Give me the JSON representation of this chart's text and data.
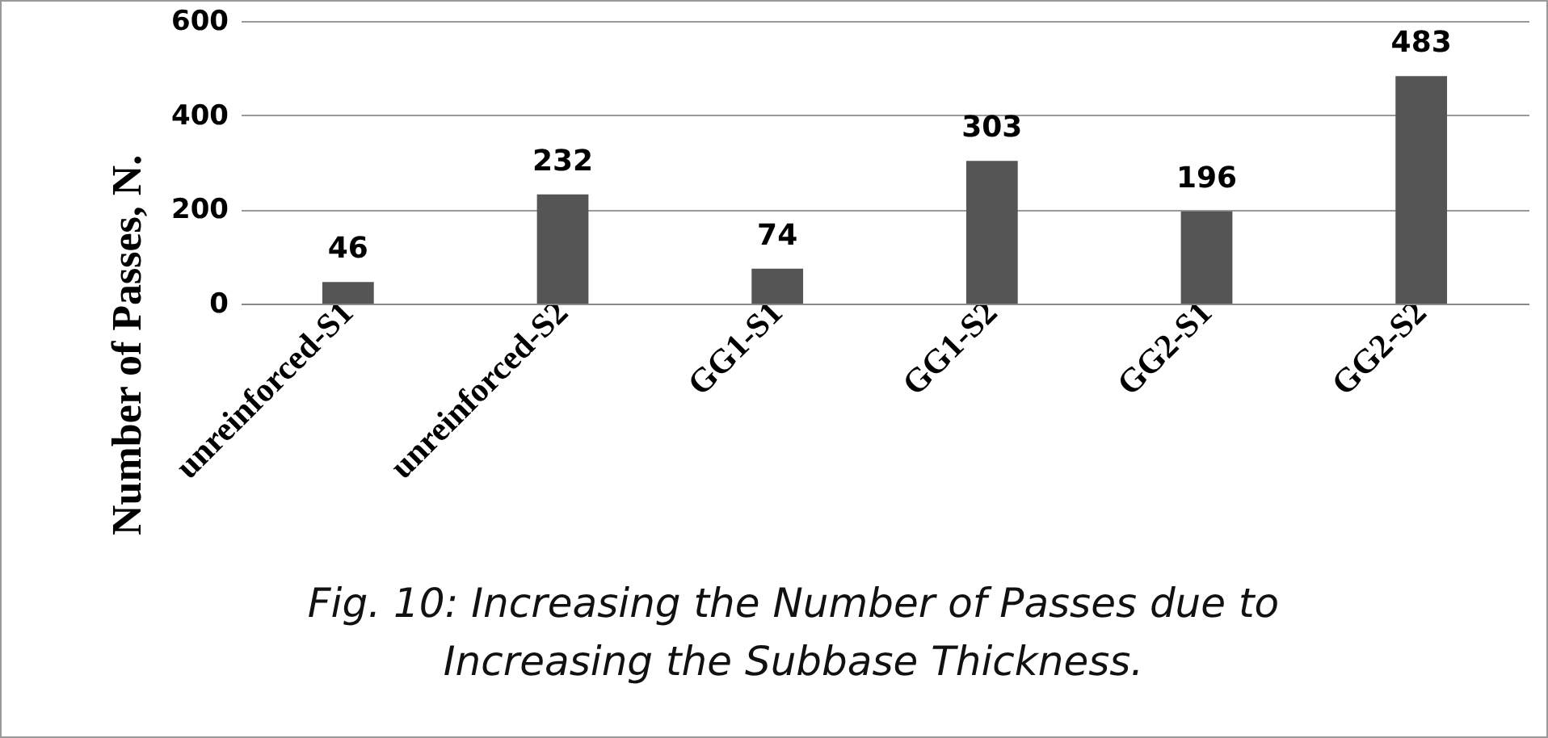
{
  "chart_data": {
    "type": "bar",
    "ylabel": "Number of Passes, N.",
    "categories": [
      "unreinforced-S1",
      "unreinforced-S2",
      "GG1-S1",
      "GG1-S2",
      "GG2-S1",
      "GG2-S2"
    ],
    "values": [
      46,
      232,
      74,
      303,
      196,
      483
    ],
    "color": "#555555",
    "ylim": [
      0,
      600
    ],
    "yticks": [
      0,
      200,
      400,
      600
    ],
    "grid": "y",
    "data_labels": true,
    "annotations": [
      "Fig. 10: Increasing the Number of Passes due to Increasing the Subbase Thickness."
    ]
  }
}
